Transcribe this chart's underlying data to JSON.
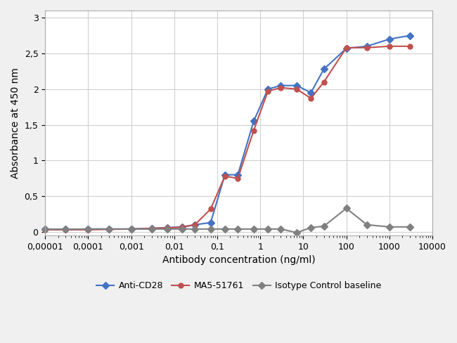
{
  "title": "",
  "xlabel": "Antibody concentration (ng/ml)",
  "ylabel": "Absorbance at 450 nm",
  "xlim": [
    1e-05,
    10000
  ],
  "ylim": [
    -0.05,
    3.0
  ],
  "yticks": [
    0,
    0.5,
    1.0,
    1.5,
    2.0,
    2.5,
    3.0
  ],
  "ytick_labels": [
    "0",
    "0,5",
    "1",
    "1,5",
    "2",
    "2,5",
    "3"
  ],
  "xtick_labels": [
    "0,00001",
    "0,0001",
    "0,001",
    "0,01",
    "0,1",
    "1",
    "10",
    "100",
    "1000",
    "10000"
  ],
  "xtick_values": [
    1e-05,
    0.0001,
    0.001,
    0.01,
    0.1,
    1,
    10,
    100,
    1000,
    10000
  ],
  "series": [
    {
      "name": "Anti-CD28",
      "color": "#4472C4",
      "marker": "D",
      "markersize": 5,
      "linewidth": 1.5,
      "x": [
        1e-05,
        3e-05,
        0.0001,
        0.0003,
        0.001,
        0.003,
        0.007,
        0.015,
        0.03,
        0.07,
        0.15,
        0.3,
        0.7,
        1.5,
        3,
        7,
        15,
        30,
        100,
        300,
        1000,
        3000
      ],
      "y": [
        0.04,
        0.035,
        0.04,
        0.04,
        0.04,
        0.05,
        0.06,
        0.07,
        0.1,
        0.13,
        0.8,
        0.8,
        1.55,
        2.0,
        2.05,
        2.05,
        1.95,
        2.28,
        2.57,
        2.6,
        2.7,
        2.75
      ]
    },
    {
      "name": "MA5-51761",
      "color": "#C0504D",
      "marker": "o",
      "markersize": 5,
      "linewidth": 1.5,
      "x": [
        1e-05,
        3e-05,
        0.0001,
        0.0003,
        0.001,
        0.003,
        0.007,
        0.015,
        0.03,
        0.07,
        0.15,
        0.3,
        0.7,
        1.5,
        3,
        7,
        15,
        30,
        100,
        300,
        1000,
        3000
      ],
      "y": [
        0.03,
        0.03,
        0.03,
        0.035,
        0.04,
        0.05,
        0.055,
        0.065,
        0.1,
        0.32,
        0.78,
        0.75,
        1.42,
        1.97,
        2.02,
        2.0,
        1.87,
        2.1,
        2.58,
        2.58,
        2.6,
        2.6
      ]
    },
    {
      "name": "Isotype Control baseline",
      "color": "#808080",
      "marker": "D",
      "markersize": 5,
      "linewidth": 1.5,
      "x": [
        1e-05,
        3e-05,
        0.0001,
        0.0003,
        0.001,
        0.003,
        0.007,
        0.015,
        0.03,
        0.07,
        0.15,
        0.3,
        0.7,
        1.5,
        3,
        7,
        15,
        30,
        100,
        300,
        1000,
        3000
      ],
      "y": [
        0.04,
        0.035,
        0.04,
        0.04,
        0.04,
        0.04,
        0.04,
        0.04,
        0.04,
        0.04,
        0.04,
        0.04,
        0.04,
        0.04,
        0.04,
        -0.01,
        0.06,
        0.08,
        0.33,
        0.1,
        0.07,
        0.07
      ]
    }
  ],
  "legend_loc": "lower center",
  "background_color": "#ffffff",
  "grid_color": "#d0d0d0",
  "figure_bg": "#f0f0f0"
}
